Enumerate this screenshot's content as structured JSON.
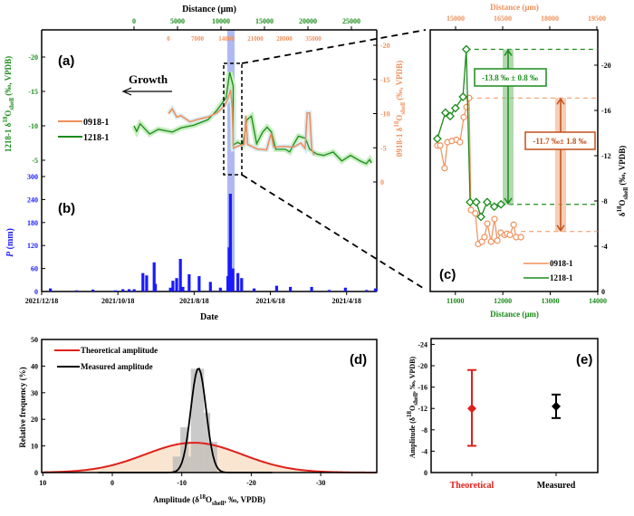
{
  "colors": {
    "green": "#1a8c1a",
    "orange": "#f0905a",
    "blue": "#1a1aff",
    "band": "#9aa8f0",
    "red": "#e0201a",
    "black": "#000000",
    "hist": "#b8b8b8",
    "fill": "#f8dfc4"
  },
  "chart_data": [
    {
      "panel": "(a)",
      "type": "line",
      "top_axis_title": "Distance (μm)",
      "top_ticks_green": [
        "0",
        "5000",
        "10000",
        "15000",
        "20000",
        "25000"
      ],
      "top_ticks_orange": [
        "0",
        "7000",
        "14000",
        "21000",
        "28000",
        "35000"
      ],
      "left_ylabel": {
        "pre": "1218-1 δ",
        "sup": "18",
        "mid": "O",
        "sub": "shell",
        "post": " (‰, VPDB)"
      },
      "right_ylabel": {
        "pre": "0918-1 δ",
        "sup": "18",
        "mid": "O",
        "sub": "shell",
        "post": " (‰, VPDB)"
      },
      "left_ticks": [
        "-5",
        "-10",
        "-15",
        "-20"
      ],
      "right_ticks": [
        "0",
        "-5",
        "-10",
        "-15",
        "-20"
      ],
      "annotation": "Growth",
      "series": [
        {
          "name": "1218-1",
          "color": "#1a8c1a",
          "x": [
            0,
            300,
            700,
            1800,
            2800,
            4400,
            5400,
            6900,
            8500,
            9500,
            10600,
            11000,
            11400,
            11400,
            11900,
            12500,
            13000,
            13500,
            14100,
            14800,
            15300,
            15800,
            16300,
            17400,
            17900,
            18400,
            18900,
            19700,
            20200,
            21000,
            21800,
            22900,
            23900,
            24900,
            26000,
            26700,
            27100,
            27300
          ],
          "y": [
            -10,
            -9.2,
            -10.3,
            -8.8,
            -9.5,
            -9.1,
            -9.7,
            -10.1,
            -10.9,
            -12.2,
            -14.1,
            -17.8,
            -15.8,
            -7.2,
            -7.6,
            -7.2,
            -10.9,
            -11.4,
            -7.4,
            -9.1,
            -9.8,
            -9.1,
            -6.6,
            -6.6,
            -6.2,
            -7.4,
            -8.5,
            -8.2,
            -6.6,
            -5.9,
            -5.7,
            -6.2,
            -4.9,
            -5.7,
            -4.9,
            -4.5,
            -5.1,
            -4.6
          ]
        },
        {
          "name": "0918-1",
          "color": "#f0905a",
          "x": [
            0,
            900,
            2000,
            3000,
            5200,
            7400,
            9600,
            11700,
            13500,
            14300,
            15000,
            15400,
            15700,
            16500,
            18300,
            18700,
            19100,
            21500,
            23700,
            24800,
            25400,
            28000,
            30200,
            32000,
            33000,
            33500,
            34100,
            34600,
            35200
          ],
          "y": [
            -10,
            -10.7,
            -9.5,
            -9.7,
            -8.8,
            -9.2,
            -9.5,
            -10.1,
            -11.1,
            -12.1,
            -13.5,
            -10.8,
            -4.9,
            -5.2,
            -5.5,
            -9.7,
            -5.5,
            -4.8,
            -4.7,
            -7.1,
            -5.1,
            -5.2,
            -5.1,
            -5.7,
            -4.9,
            -10.1,
            -10.1,
            -4.8,
            -3.9
          ]
        }
      ]
    },
    {
      "panel": "(b)",
      "type": "bar",
      "xlabel": "Date",
      "ylabel": "P (mm)",
      "ylabel_italic": "P",
      "ylabel_rest": " (mm)",
      "ylim": [
        0,
        300
      ],
      "y_ticks": [
        "0",
        "60",
        "120",
        "180",
        "240",
        "300"
      ],
      "x_ticks": [
        "2021/12/18",
        "2021/10/18",
        "2021/8/18",
        "2021/6/18",
        "2021/4/18"
      ],
      "x_axis_reversed": true,
      "bars": {
        "dates": [
          "2021-12-11",
          "2021-11-20",
          "2021-11-07",
          "2021-10-20",
          "2021-10-14",
          "2021-10-09",
          "2021-10-05",
          "2021-09-28",
          "2021-09-25",
          "2021-09-19",
          "2021-09-18",
          "2021-09-06",
          "2021-09-04",
          "2021-09-01",
          "2021-08-29",
          "2021-08-27",
          "2021-08-22",
          "2021-08-14",
          "2021-08-05",
          "2021-07-28",
          "2021-07-22",
          "2021-07-21",
          "2021-07-20",
          "2021-07-18",
          "2021-07-14",
          "2021-07-11",
          "2021-07-01",
          "2021-06-13",
          "2021-06-02",
          "2021-05-16",
          "2021-05-02",
          "2021-04-19",
          "2021-04-02",
          "2021-03-26"
        ],
        "values": [
          8,
          3,
          5,
          3,
          6,
          6,
          6,
          48,
          42,
          76,
          20,
          10,
          28,
          35,
          85,
          12,
          45,
          40,
          25,
          10,
          40,
          115,
          255,
          60,
          48,
          35,
          8,
          15,
          12,
          12,
          4,
          10,
          4,
          8
        ]
      },
      "highlight_dates": [
        "2021-07-24",
        "2021-07-18"
      ]
    },
    {
      "panel": "(c)",
      "type": "line",
      "xlabel": "Distance (μm)",
      "top_xlabel": "Distance (μm)",
      "x_ticks": [
        "11000",
        "12000",
        "13000",
        "14000"
      ],
      "top_x_ticks": [
        "15000",
        "16500",
        "18000",
        "19500"
      ],
      "ylabel": {
        "pre": "δ",
        "sup": "18",
        "mid": "O",
        "sub": "shell",
        "post": " (‰, VPDB)"
      },
      "y_ticks": [
        "0",
        "-4",
        "-8",
        "-12",
        "-16",
        "-20"
      ],
      "series": [
        {
          "name": "1218-1",
          "color": "#1a8c1a",
          "marker": "diamond",
          "x": [
            10620,
            10790,
            10890,
            11000,
            11160,
            11230,
            11310,
            11440,
            11540,
            11670,
            11820,
            11960
          ],
          "y": [
            -13.5,
            -15.8,
            -15.5,
            -16.2,
            -17.2,
            -21.4,
            -7.9,
            -7.9,
            -6.6,
            -7.9,
            -7.5,
            -7.7
          ]
        },
        {
          "name": "0918-1",
          "color": "#f0905a",
          "marker": "circle",
          "axis": "top",
          "x": [
            14420,
            14510,
            14650,
            14740,
            14880,
            15030,
            15140,
            15260,
            15350,
            15430,
            15490,
            15630,
            15720,
            15840,
            15920,
            16010,
            16130,
            16240,
            16330,
            16440,
            16560,
            16640,
            16730,
            16850,
            16930,
            17080
          ],
          "y": [
            -12.9,
            -12.9,
            -10.9,
            -13.2,
            -13.3,
            -13.4,
            -13.2,
            -15.4,
            -16.3,
            -17.1,
            -7.2,
            -6.9,
            -4.2,
            -4.4,
            -4.8,
            -6.0,
            -4.4,
            -6.4,
            -4.5,
            -5.2,
            -5.0,
            -5.1,
            -5.0,
            -5.9,
            -4.8,
            -4.8
          ]
        }
      ],
      "annotations": [
        {
          "text": "-13.8 ‰ ± 0.8 ‰",
          "color": "#1a8c1a",
          "from": -21.4,
          "to": -7.7
        },
        {
          "text": "-11.7 ‰± 1.8 ‰",
          "color": "#c0501a",
          "from": -17.1,
          "to": -5.3
        }
      ]
    },
    {
      "panel": "(d)",
      "type": "bar",
      "xlabel": {
        "pre": "Amplitude (δ",
        "sup": "18",
        "mid": "O",
        "sub": "shell",
        "post": ", ‰, VPDB)"
      },
      "ylabel": "Relative frequency (%)",
      "xlim": [
        10,
        -38
      ],
      "ylim": [
        0,
        50
      ],
      "x_ticks": [
        "10",
        "0",
        "-10",
        "-20",
        "-30"
      ],
      "y_ticks": [
        "0",
        "10",
        "20",
        "30",
        "40",
        "50"
      ],
      "histogram": {
        "bin_edges": [
          -8.7,
          -9.8,
          -11.0,
          -11.3,
          -13.2,
          -14.1,
          -15.1
        ],
        "values": [
          6,
          17,
          6,
          39,
          22.5,
          11.5
        ]
      },
      "series": [
        {
          "name": "Theoretical amplitude",
          "color": "#e0201a",
          "type": "gaussian",
          "mean": -11.7,
          "sd": 7.0,
          "peak": 11.2
        },
        {
          "name": "Measured amplitude",
          "color": "#000000",
          "type": "gaussian",
          "mean": -12.4,
          "sd": 1.1,
          "peak": 39.2
        }
      ]
    },
    {
      "panel": "(e)",
      "type": "scatter",
      "ylabel": {
        "pre": "Amplitude (δ",
        "sup": "18",
        "mid": "O",
        "sub": "shell",
        "post": ", ‰, VPDB)"
      },
      "y_ticks": [
        "0",
        "-4",
        "-8",
        "-12",
        "-16",
        "-20",
        "-24"
      ],
      "ylim": [
        0,
        -24
      ],
      "categories": [
        "Theoretical",
        "Measured"
      ],
      "values": [
        -12.0,
        -12.4
      ],
      "error_low": [
        -5.0,
        -10.2
      ],
      "error_high": [
        -19.2,
        -14.6
      ],
      "category_colors": [
        "#e0201a",
        "#000000"
      ]
    }
  ]
}
